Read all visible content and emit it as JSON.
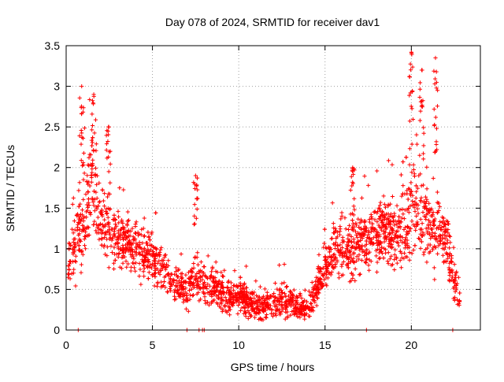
{
  "chart_data": {
    "type": "scatter",
    "title": "Day 078 of 2024, SRMTID for receiver dav1",
    "xlabel": "GPS time / hours",
    "ylabel": "SRMTID / TECUs",
    "xlim": [
      0,
      24
    ],
    "ylim": [
      0,
      3.5
    ],
    "x_ticks": [
      0,
      5,
      10,
      15,
      20
    ],
    "y_ticks": [
      0,
      0.5,
      1,
      1.5,
      2,
      2.5,
      3,
      3.5
    ],
    "x_tick_labels": [
      "0",
      "5",
      "10",
      "15",
      "20"
    ],
    "y_tick_labels": [
      "0",
      "0.5",
      "1",
      "1.5",
      "2",
      "2.5",
      "3",
      "3.5"
    ],
    "grid": true,
    "marker": "+",
    "color": "#ff0000",
    "envelope_note": "Dense scatter of several thousand '+' markers; trend approximated by hourly mean/spread below",
    "trend": {
      "x": [
        0.1,
        0.5,
        1.0,
        1.5,
        2.0,
        2.5,
        3.0,
        3.5,
        4.0,
        4.5,
        5.0,
        5.5,
        6.0,
        6.5,
        7.0,
        7.5,
        8.0,
        8.5,
        9.0,
        9.5,
        10.0,
        10.5,
        11.0,
        11.5,
        12.0,
        12.5,
        13.0,
        13.5,
        14.0,
        14.5,
        15.0,
        15.5,
        16.0,
        16.5,
        17.0,
        17.5,
        18.0,
        18.5,
        19.0,
        19.5,
        20.0,
        20.5,
        21.0,
        21.5,
        22.0,
        22.5,
        22.8
      ],
      "mean": [
        0.8,
        1.05,
        1.3,
        1.9,
        1.4,
        1.25,
        1.1,
        1.05,
        1.0,
        0.95,
        0.9,
        0.8,
        0.65,
        0.55,
        0.5,
        0.6,
        0.55,
        0.55,
        0.45,
        0.4,
        0.45,
        0.35,
        0.3,
        0.3,
        0.3,
        0.35,
        0.35,
        0.3,
        0.25,
        0.5,
        0.8,
        0.95,
        1.0,
        1.0,
        1.1,
        1.1,
        1.2,
        1.2,
        1.2,
        1.3,
        1.5,
        1.4,
        1.3,
        1.25,
        1.1,
        0.6,
        0.35
      ],
      "spread": [
        0.3,
        0.5,
        0.7,
        0.8,
        0.6,
        0.5,
        0.45,
        0.4,
        0.4,
        0.4,
        0.35,
        0.35,
        0.3,
        0.3,
        0.3,
        0.35,
        0.3,
        0.35,
        0.35,
        0.25,
        0.25,
        0.2,
        0.2,
        0.2,
        0.25,
        0.3,
        0.25,
        0.2,
        0.15,
        0.3,
        0.4,
        0.45,
        0.5,
        0.5,
        0.5,
        0.5,
        0.5,
        0.5,
        0.55,
        0.7,
        0.9,
        0.8,
        0.6,
        0.55,
        0.5,
        0.35,
        0.2
      ]
    },
    "peaks": [
      {
        "x": 0.9,
        "y": 3.0
      },
      {
        "x": 1.6,
        "y": 2.9
      },
      {
        "x": 2.45,
        "y": 2.5
      },
      {
        "x": 7.5,
        "y": 1.9
      },
      {
        "x": 16.6,
        "y": 2.0
      },
      {
        "x": 20.0,
        "y": 3.42
      },
      {
        "x": 20.6,
        "y": 3.2
      },
      {
        "x": 21.4,
        "y": 3.35
      }
    ],
    "zero_points": [
      0.7,
      7.0,
      7.7,
      7.9,
      8.0,
      17.4,
      22.4
    ]
  }
}
